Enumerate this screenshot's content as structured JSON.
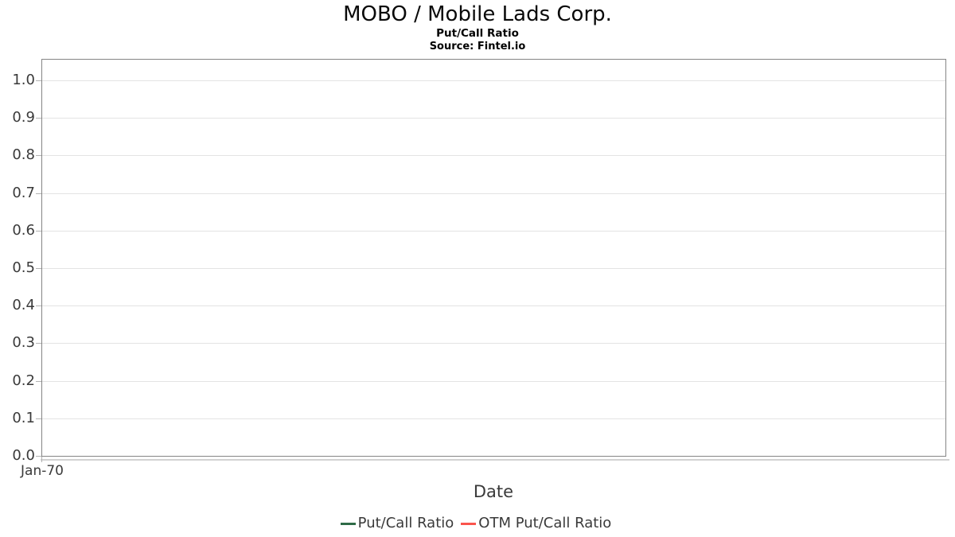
{
  "header": {
    "title": "MOBO / Mobile Lads Corp.",
    "subtitle": "Put/Call Ratio",
    "source": "Source: Fintel.io"
  },
  "axes": {
    "x_label": "Date",
    "x_tick_labels": [
      "Jan-70"
    ],
    "y_tick_labels": [
      "0.0",
      "0.1",
      "0.2",
      "0.3",
      "0.4",
      "0.5",
      "0.6",
      "0.7",
      "0.8",
      "0.9",
      "1.0"
    ]
  },
  "legend": {
    "items": [
      {
        "label": "Put/Call Ratio",
        "color": "#2e6b47"
      },
      {
        "label": "OTM Put/Call Ratio",
        "color": "#fa544c"
      }
    ]
  },
  "colors": {
    "plot_border": "#858585",
    "gridline": "#e3e3e3",
    "tick": "#b3b3b3",
    "axis_subline": "#d2d2d2",
    "title_text": "#0a0a0a",
    "axis_text": "#3a3a3a"
  },
  "chart_data": {
    "type": "line",
    "title": "MOBO / Mobile Lads Corp.",
    "subtitle": "Put/Call Ratio",
    "source": "Fintel.io",
    "xlabel": "Date",
    "ylabel": "",
    "x_ticks": [
      "Jan-70"
    ],
    "ylim": [
      0,
      1.055
    ],
    "yticks": [
      0,
      0.1,
      0.2,
      0.3,
      0.4,
      0.5,
      0.6,
      0.7,
      0.8,
      0.9,
      1.0
    ],
    "grid": "horizontal-only",
    "legend_position": "bottom-center",
    "series": [
      {
        "name": "Put/Call Ratio",
        "color": "#2e6b47",
        "x": [],
        "values": []
      },
      {
        "name": "OTM Put/Call Ratio",
        "color": "#fa544c",
        "x": [],
        "values": []
      }
    ],
    "note": "chart area contains no plotted data points"
  }
}
